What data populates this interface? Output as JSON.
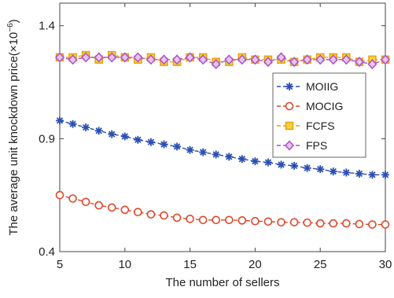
{
  "chart_data": {
    "type": "line",
    "title": "",
    "xlabel": "The number of sellers",
    "ylabel_text": "The average unit knockdown price(×10",
    "ylabel_exponent": "−6",
    "ylabel_close": ")",
    "xlim": [
      5,
      30
    ],
    "ylim": [
      0.4,
      1.5
    ],
    "xticks": [
      5,
      10,
      15,
      20,
      25,
      30
    ],
    "xtick_labels": [
      "5",
      "10",
      "15",
      "20",
      "25",
      "30"
    ],
    "yticks": [
      0.4,
      0.9,
      1.4
    ],
    "ytick_labels": [
      "0.4",
      "0.9",
      "1.4"
    ],
    "grid": false,
    "legend_position": "right",
    "x": [
      5,
      6,
      7,
      8,
      9,
      10,
      11,
      12,
      13,
      14,
      15,
      16,
      17,
      18,
      19,
      20,
      21,
      22,
      23,
      24,
      25,
      26,
      27,
      28,
      29,
      30
    ],
    "series": [
      {
        "name": "MOIIG",
        "color": "#2b4fb3",
        "marker": "asterisk",
        "values": [
          0.98,
          0.965,
          0.95,
          0.935,
          0.92,
          0.91,
          0.895,
          0.885,
          0.875,
          0.865,
          0.85,
          0.84,
          0.83,
          0.82,
          0.81,
          0.8,
          0.795,
          0.785,
          0.78,
          0.77,
          0.765,
          0.755,
          0.75,
          0.745,
          0.74,
          0.74
        ]
      },
      {
        "name": "MOCIG",
        "color": "#e0472a",
        "marker": "circle",
        "values": [
          0.65,
          0.635,
          0.62,
          0.605,
          0.595,
          0.585,
          0.575,
          0.565,
          0.56,
          0.55,
          0.545,
          0.54,
          0.54,
          0.54,
          0.538,
          0.535,
          0.533,
          0.53,
          0.53,
          0.528,
          0.525,
          0.525,
          0.525,
          0.522,
          0.52,
          0.52
        ]
      },
      {
        "name": "FCFS",
        "color": "#e8a010",
        "marker": "square",
        "values": [
          1.26,
          1.26,
          1.27,
          1.25,
          1.27,
          1.26,
          1.25,
          1.26,
          1.24,
          1.24,
          1.26,
          1.26,
          1.24,
          1.24,
          1.26,
          1.25,
          1.25,
          1.25,
          1.24,
          1.25,
          1.26,
          1.26,
          1.26,
          1.24,
          1.25,
          1.25
        ]
      },
      {
        "name": "FPS",
        "color": "#b04fc9",
        "marker": "diamond",
        "values": [
          1.26,
          1.25,
          1.26,
          1.26,
          1.26,
          1.26,
          1.26,
          1.25,
          1.25,
          1.25,
          1.26,
          1.25,
          1.23,
          1.25,
          1.25,
          1.25,
          1.24,
          1.26,
          1.24,
          1.25,
          1.25,
          1.25,
          1.25,
          1.24,
          1.23,
          1.25
        ]
      }
    ]
  }
}
